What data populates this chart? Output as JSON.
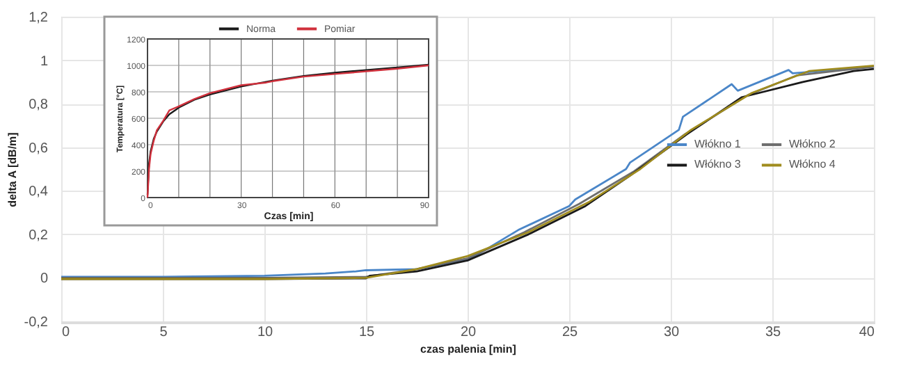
{
  "chart_data": [
    {
      "type": "line",
      "xlabel": "czas palenia [min]",
      "ylabel": "delta A [dB/m]",
      "xlim": [
        0,
        40
      ],
      "xticks": [
        0,
        5,
        10,
        15,
        20,
        25,
        30,
        35,
        40
      ],
      "ylim": [
        -0.2,
        1.2
      ],
      "yticks": [
        {
          "value": -0.2,
          "label": "-0,2"
        },
        0,
        {
          "value": 0.2,
          "label": "0,2"
        },
        {
          "value": 0.4,
          "label": "0,4"
        },
        {
          "value": 0.6,
          "label": "0,6"
        },
        {
          "value": 0.8,
          "label": "0,8"
        },
        1,
        {
          "value": 1.2,
          "label": "1,2"
        }
      ],
      "grid": true,
      "legend": "right",
      "marker": "none",
      "line_style": "solid",
      "series": [
        {
          "name": "Włókno 1",
          "color": "#4a86c8",
          "x": [
            0,
            5,
            10,
            13,
            14.5,
            15,
            17.5,
            19.7,
            20,
            22.5,
            25,
            25.3,
            27.8,
            28,
            30.4,
            30.6,
            33,
            33.3,
            35.8,
            36,
            40
          ],
          "values": [
            0.005,
            0.005,
            0.01,
            0.02,
            0.03,
            0.035,
            0.04,
            0.08,
            0.08,
            0.22,
            0.33,
            0.36,
            0.5,
            0.53,
            0.68,
            0.74,
            0.89,
            0.86,
            0.955,
            0.94,
            0.97
          ]
        },
        {
          "name": "Włókno 2",
          "color": "#6e6e6e",
          "x": [
            0,
            5,
            10,
            15,
            17.5,
            20,
            22.8,
            25.5,
            28.2,
            30.7,
            33.8,
            36.2,
            40
          ],
          "values": [
            0,
            0,
            0,
            0.005,
            0.04,
            0.09,
            0.21,
            0.34,
            0.49,
            0.66,
            0.84,
            0.93,
            0.97
          ]
        },
        {
          "name": "Włókno 3",
          "color": "#1a1a1a",
          "x": [
            0,
            5,
            10,
            15,
            15.2,
            17.5,
            20,
            23,
            25.8,
            28,
            30.8,
            33.5,
            36.5,
            39,
            40
          ],
          "values": [
            -0.005,
            -0.005,
            -0.005,
            -0.002,
            0.01,
            0.03,
            0.08,
            0.2,
            0.33,
            0.47,
            0.66,
            0.83,
            0.9,
            0.95,
            0.96
          ]
        },
        {
          "name": "Włókno 4",
          "color": "#a08c1e",
          "x": [
            0,
            5,
            10,
            15,
            17.5,
            20,
            23,
            26,
            28.5,
            31,
            34,
            36.8,
            40
          ],
          "values": [
            -0.005,
            -0.005,
            -0.005,
            0,
            0.04,
            0.1,
            0.21,
            0.35,
            0.5,
            0.68,
            0.85,
            0.95,
            0.975
          ]
        }
      ]
    },
    {
      "type": "line",
      "xlabel": "Czas [min]",
      "ylabel": "Temperatura [°C]",
      "xlim": [
        0,
        90
      ],
      "xticks": [
        0,
        {
          "value": 10,
          "label": null
        },
        {
          "value": 20,
          "label": null
        },
        30,
        {
          "value": 40,
          "label": null
        },
        {
          "value": 50,
          "label": null
        },
        60,
        {
          "value": 70,
          "label": null
        },
        {
          "value": 80,
          "label": null
        },
        90
      ],
      "ylim": [
        0,
        1200
      ],
      "yticks": [
        0,
        200,
        400,
        600,
        800,
        1000,
        1200
      ],
      "grid": true,
      "legend": "top",
      "marker": "none",
      "line_style": "solid",
      "series": [
        {
          "name": "Norma",
          "color": "#1a1a1a",
          "x": [
            0,
            0.5,
            1,
            2,
            3,
            5,
            7,
            10,
            15,
            20,
            30,
            40,
            50,
            60,
            70,
            80,
            90
          ],
          "values": [
            20,
            260,
            350,
            445,
            500,
            575,
            630,
            680,
            740,
            780,
            840,
            885,
            920,
            945,
            965,
            985,
            1005
          ]
        },
        {
          "name": "Pomiar",
          "color": "#d0303c",
          "x": [
            0,
            0.5,
            1,
            2,
            3,
            5,
            7,
            10,
            15,
            20,
            30,
            38,
            40,
            50,
            60,
            70,
            80,
            90
          ],
          "values": [
            0,
            220,
            330,
            430,
            510,
            580,
            660,
            690,
            745,
            790,
            850,
            870,
            880,
            915,
            935,
            955,
            975,
            1000
          ]
        }
      ]
    }
  ]
}
